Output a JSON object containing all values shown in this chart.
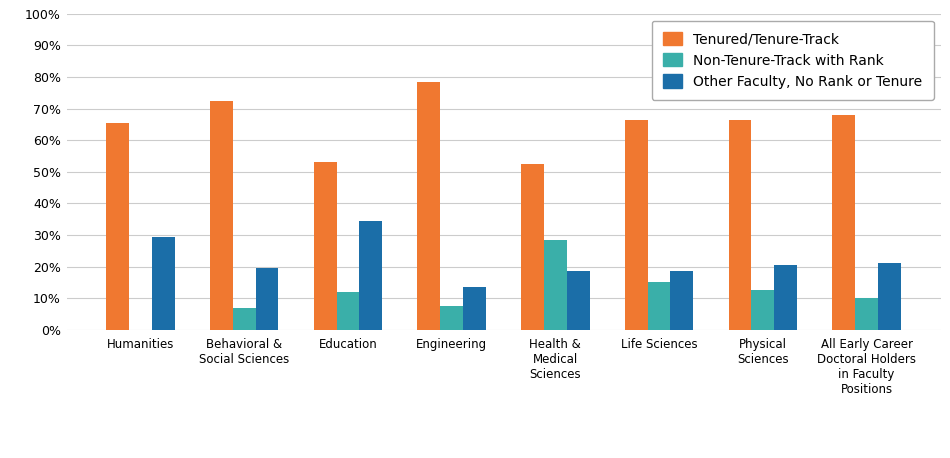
{
  "categories": [
    "Humanities",
    "Behavioral &\nSocial Sciences",
    "Education",
    "Engineering",
    "Health &\nMedical\nSciences",
    "Life Sciences",
    "Physical\nSciences",
    "All Early Career\nDoctoral Holders\nin Faculty\nPositions"
  ],
  "series": [
    {
      "name": "Tenured/Tenure-Track",
      "color": "#f07830",
      "values": [
        65.5,
        72.5,
        53.0,
        78.5,
        52.5,
        66.5,
        66.5,
        68.0
      ]
    },
    {
      "name": "Non-Tenure-Track with Rank",
      "color": "#3aafa9",
      "values": [
        0,
        7.0,
        12.0,
        7.5,
        28.5,
        15.0,
        12.5,
        10.0
      ]
    },
    {
      "name": "Other Faculty, No Rank or Tenure",
      "color": "#1b6ea8",
      "values": [
        29.5,
        19.5,
        34.5,
        13.5,
        18.5,
        18.5,
        20.5,
        21.0
      ]
    }
  ],
  "ylim": [
    0,
    100
  ],
  "yticks": [
    0,
    10,
    20,
    30,
    40,
    50,
    60,
    70,
    80,
    90,
    100
  ],
  "ytick_labels": [
    "0%",
    "10%",
    "20%",
    "30%",
    "40%",
    "50%",
    "60%",
    "70%",
    "80%",
    "90%",
    "100%"
  ],
  "background_color": "#ffffff",
  "grid_color": "#cccccc",
  "bar_width": 0.22,
  "legend_fontsize": 10,
  "tick_fontsize": 9,
  "category_fontsize": 8.5,
  "figsize": [
    9.5,
    4.58
  ],
  "dpi": 100
}
